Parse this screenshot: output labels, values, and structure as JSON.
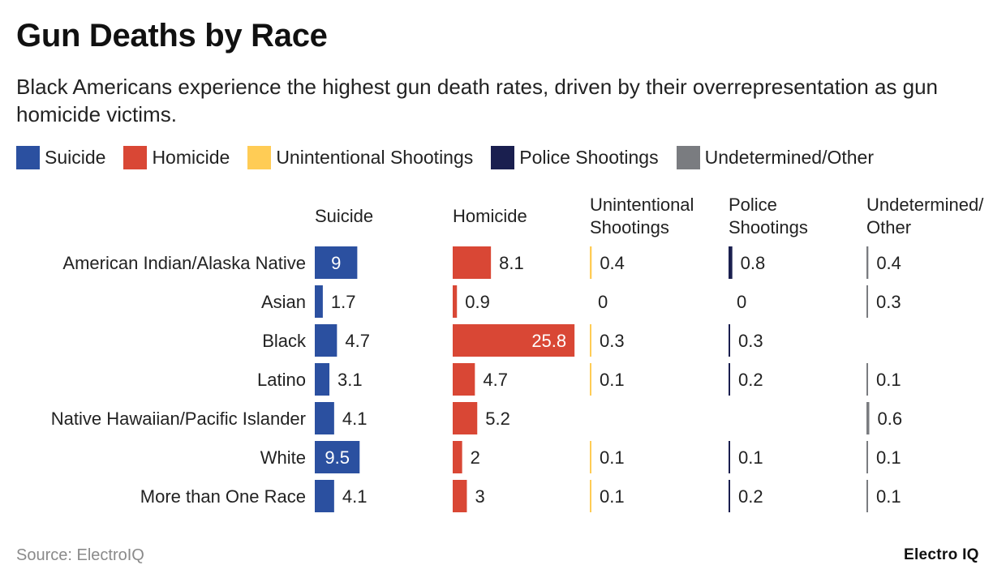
{
  "title": "Gun Deaths by Race",
  "subtitle": "Black Americans experience the highest gun death rates, driven by their overrepresentation as gun homicide victims.",
  "source": "Source: ElectroIQ",
  "brand": "Electro IQ",
  "legend": [
    {
      "label": "Suicide",
      "color": "#2b50a0"
    },
    {
      "label": "Homicide",
      "color": "#d94735"
    },
    {
      "label": "Unintentional Shootings",
      "color": "#ffcc55"
    },
    {
      "label": "Police Shootings",
      "color": "#1a1f4f"
    },
    {
      "label": "Undetermined/Other",
      "color": "#7a7c80"
    }
  ],
  "chart_data": {
    "type": "bar",
    "title": "Gun Deaths by Race",
    "categories": [
      "American Indian/Alaska Native",
      "Asian",
      "Black",
      "Latino",
      "Native Hawaiian/Pacific Islander",
      "White",
      "More than One Race"
    ],
    "series": [
      {
        "name": "Suicide",
        "header": [
          "Suicide"
        ],
        "color": "#2b50a0",
        "values": [
          9,
          1.7,
          4.7,
          3.1,
          4.1,
          9.5,
          4.1
        ],
        "labels": [
          "9",
          "1.7",
          "4.7",
          "3.1",
          "4.1",
          "9.5",
          "4.1"
        ]
      },
      {
        "name": "Homicide",
        "header": [
          "Homicide"
        ],
        "color": "#d94735",
        "values": [
          8.1,
          0.9,
          25.8,
          4.7,
          5.2,
          2,
          3
        ],
        "labels": [
          "8.1",
          "0.9",
          "25.8",
          "4.7",
          "5.2",
          "2",
          "3"
        ]
      },
      {
        "name": "Unintentional Shootings",
        "header": [
          "Unintentional",
          "Shootings"
        ],
        "color": "#ffcc55",
        "values": [
          0.4,
          0,
          0.3,
          0.1,
          null,
          0.1,
          0.1
        ],
        "labels": [
          "0.4",
          "0",
          "0.3",
          "0.1",
          "",
          "0.1",
          "0.1"
        ]
      },
      {
        "name": "Police Shootings",
        "header": [
          "Police",
          "Shootings"
        ],
        "color": "#1a1f4f",
        "values": [
          0.8,
          0,
          0.3,
          0.2,
          null,
          0.1,
          0.2
        ],
        "labels": [
          "0.8",
          "0",
          "0.3",
          "0.2",
          "",
          "0.1",
          "0.2"
        ]
      },
      {
        "name": "Undetermined/Other",
        "header": [
          "Undetermined/",
          "Other"
        ],
        "color": "#7a7c80",
        "values": [
          0.4,
          0.3,
          null,
          0.1,
          0.6,
          0.1,
          0.1
        ],
        "labels": [
          "0.4",
          "0.3",
          "",
          "0.1",
          "0.6",
          "0.1",
          "0.1"
        ]
      }
    ]
  }
}
